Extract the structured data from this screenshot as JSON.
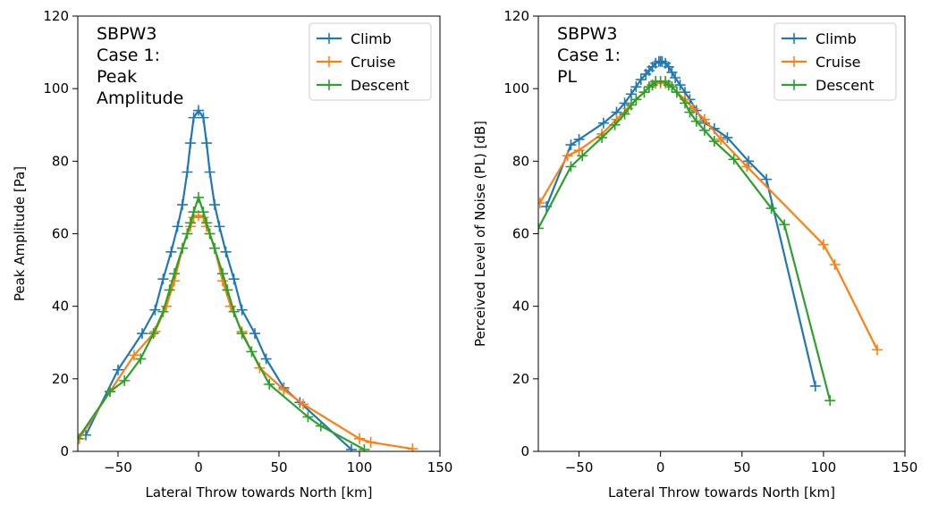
{
  "chart_data": [
    {
      "type": "line",
      "xlabel": "Lateral Throw towards North [km]",
      "ylabel": "Peak Amplitude [Pa]",
      "annotation": [
        "SBPW3",
        "Case 1:",
        "Peak",
        "Amplitude"
      ],
      "xlim": [
        -75,
        150
      ],
      "ylim": [
        0,
        120
      ],
      "xticks": [
        -50,
        0,
        50,
        100,
        150
      ],
      "yticks": [
        0,
        20,
        40,
        60,
        80,
        100,
        120
      ],
      "grid": false,
      "legend": "top-right",
      "series": [
        {
          "name": "Climb",
          "color": "#1f77b4",
          "x": [
            -70,
            -50,
            -35,
            -27,
            -22,
            -17,
            -13,
            -10,
            -7,
            -5,
            -3,
            0,
            3,
            5,
            7,
            10,
            13,
            17,
            22,
            27,
            35,
            42,
            53,
            63,
            95
          ],
          "y": [
            4.5,
            22.5,
            32.5,
            39,
            47.5,
            55,
            62,
            68,
            77,
            85,
            92,
            94,
            92,
            85,
            77,
            68,
            62,
            55,
            47.5,
            39,
            32.5,
            25.5,
            17.5,
            13.5,
            0.5
          ]
        },
        {
          "name": "Cruise",
          "color": "#ff7f0e",
          "x": [
            -74,
            -55,
            -40,
            -27,
            -20,
            -15,
            -10,
            -7,
            -5,
            -3,
            0,
            3,
            5,
            7,
            10,
            15,
            20,
            27,
            38,
            53,
            65,
            100,
            107,
            133
          ],
          "y": [
            3.5,
            16.5,
            26.5,
            33,
            40,
            47,
            56,
            60,
            62,
            64.5,
            65,
            64.5,
            62,
            60,
            56,
            47,
            40,
            33,
            23,
            17,
            13,
            3.5,
            2.5,
            0.7
          ]
        },
        {
          "name": "Descent",
          "color": "#2ca02c",
          "x": [
            -75,
            -55,
            -46,
            -36,
            -28,
            -22,
            -18,
            -15,
            -10,
            -7,
            -5,
            -3,
            0,
            3,
            5,
            7,
            10,
            15,
            18,
            22,
            27,
            33,
            44,
            68,
            76,
            103
          ],
          "y": [
            3.5,
            16.5,
            19.5,
            25.5,
            32.5,
            38.5,
            44.5,
            49,
            56,
            60,
            63,
            66,
            70,
            66,
            63,
            60,
            56,
            49,
            44.5,
            38.5,
            32.5,
            27.5,
            18.5,
            9.5,
            7,
            0.5
          ]
        }
      ]
    },
    {
      "type": "line",
      "xlabel": "Lateral Throw towards North [km]",
      "ylabel": "Perceived Level of Noise (PL) [dB]",
      "annotation": [
        "SBPW3",
        "Case 1:",
        "PL"
      ],
      "xlim": [
        -75,
        150
      ],
      "ylim": [
        0,
        120
      ],
      "xticks": [
        -50,
        0,
        50,
        100,
        150
      ],
      "yticks": [
        0,
        20,
        40,
        60,
        80,
        100,
        120
      ],
      "grid": false,
      "legend": "top-right",
      "series": [
        {
          "name": "Climb",
          "color": "#1f77b4",
          "x": [
            -70,
            -55,
            -50,
            -35,
            -27,
            -22,
            -18,
            -15,
            -12,
            -9,
            -7,
            -5,
            -3,
            -1,
            0,
            1,
            3,
            5,
            7,
            9,
            12,
            15,
            18,
            22,
            27,
            33,
            41,
            54,
            65,
            95
          ],
          "y": [
            67.5,
            84.5,
            86,
            90.5,
            93.5,
            96,
            98.5,
            100.5,
            102.5,
            104,
            105,
            106,
            107,
            107.5,
            107.5,
            107.5,
            107,
            106,
            104.5,
            103,
            101,
            99,
            97,
            94,
            90.5,
            89,
            86.5,
            80,
            75,
            18
          ]
        },
        {
          "name": "Cruise",
          "color": "#ff7f0e",
          "x": [
            -74,
            -57,
            -50,
            -36,
            -27,
            -20,
            -15,
            -10,
            -7,
            -5,
            -3,
            0,
            3,
            5,
            7,
            10,
            15,
            20,
            27,
            37,
            53,
            100,
            107,
            133
          ],
          "y": [
            68.5,
            81.5,
            83,
            87.5,
            91.5,
            94.5,
            97,
            99,
            100.5,
            101,
            101.5,
            101.5,
            101.5,
            101,
            100.5,
            99,
            97,
            94.5,
            91.5,
            86,
            78.5,
            57,
            51.5,
            28
          ]
        },
        {
          "name": "Descent",
          "color": "#2ca02c",
          "x": [
            -75,
            -55,
            -48,
            -36,
            -28,
            -22,
            -18,
            -15,
            -10,
            -7,
            -5,
            -3,
            0,
            3,
            5,
            7,
            10,
            15,
            18,
            22,
            27,
            33,
            45,
            68,
            76,
            104
          ],
          "y": [
            61.5,
            78.5,
            81.5,
            86.5,
            90,
            93,
            95.5,
            97,
            99,
            100.5,
            101,
            102,
            102,
            102,
            101,
            100.5,
            99,
            96,
            93.5,
            91,
            88.5,
            85.5,
            80.5,
            67,
            62.5,
            14
          ]
        }
      ]
    }
  ]
}
